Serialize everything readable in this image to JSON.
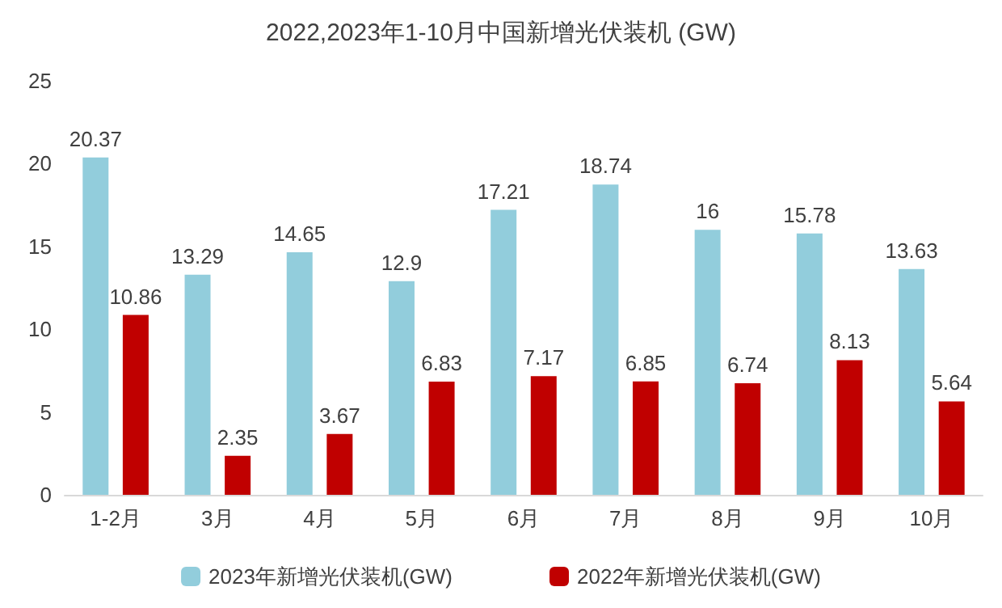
{
  "chart_data": {
    "type": "bar",
    "title": "2022,2023年1-10月中国新增光伏装机 (GW)",
    "categories": [
      "1-2月",
      "3月",
      "4月",
      "5月",
      "6月",
      "7月",
      "8月",
      "9月",
      "10月"
    ],
    "series": [
      {
        "name": "2023年新增光伏装机(GW)",
        "color": "#92cddc",
        "values": [
          20.37,
          13.29,
          14.65,
          12.9,
          17.21,
          18.74,
          16,
          15.78,
          13.63
        ]
      },
      {
        "name": "2022年新增光伏装机(GW)",
        "color": "#c00000",
        "values": [
          10.86,
          2.35,
          3.67,
          6.83,
          7.17,
          6.85,
          6.74,
          8.13,
          5.64
        ]
      }
    ],
    "ylim": [
      0,
      25
    ],
    "yticks": [
      0,
      5,
      10,
      15,
      20,
      25
    ],
    "grid": false,
    "legend": "bottom",
    "data_labels": true
  }
}
